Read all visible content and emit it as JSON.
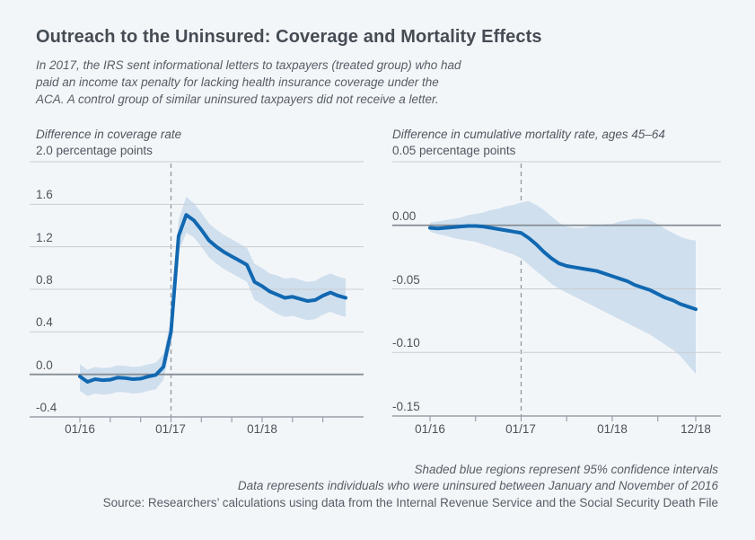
{
  "header": {
    "title": "Outreach to the Uninsured: Coverage and Mortality Effects",
    "subtitle_lines": [
      "In 2017, the IRS sent informational letters to taxpayers (treated group) who had",
      "paid an income tax penalty for lacking health insurance coverage under the",
      "ACA. A control group of similar uninsured taxpayers did not receive a letter."
    ]
  },
  "colors": {
    "background": "#f3f6f9",
    "line": "#1168b1",
    "band": "#cfdfee",
    "grid": "#c7cdd3",
    "zero_line": "#858d95",
    "axis": "#99a1a9",
    "dashed": "#90989f",
    "title_text": "#454c54",
    "body_text": "#565e66"
  },
  "footnotes": {
    "line1": "Shaded blue regions represent 95% confidence intervals",
    "line2": "Data represents individuals who were uninsured between January and November of 2016",
    "line3": "Source: Researchers’ calculations using data from the Internal Revenue Service and the Social Security Death File"
  },
  "chart_data": [
    {
      "type": "line",
      "title": "Difference in coverage rate",
      "units_label": "2.0 percentage points",
      "ylabel": "Difference in coverage rate (percentage points)",
      "ylim": [
        -0.4,
        2.0
      ],
      "ytick_step": 0.4,
      "ytick_labels": [
        "1.6",
        "1.2",
        "0.8",
        "0.4",
        "0.0",
        "-0.4"
      ],
      "xtick_labels": [
        "01/16",
        "01/17",
        "01/18"
      ],
      "treatment_start": "01/17",
      "grid": "horizontal",
      "legend_position": "none",
      "x": [
        "01/16",
        "02/16",
        "03/16",
        "04/16",
        "05/16",
        "06/16",
        "07/16",
        "08/16",
        "09/16",
        "10/16",
        "11/16",
        "12/16",
        "01/17",
        "02/17",
        "03/17",
        "04/17",
        "05/17",
        "06/17",
        "07/17",
        "08/17",
        "09/17",
        "10/17",
        "11/17",
        "12/17",
        "01/18",
        "02/18",
        "03/18",
        "04/18",
        "05/18",
        "06/18",
        "07/18",
        "08/18",
        "09/18",
        "10/18",
        "11/18",
        "12/18"
      ],
      "series": [
        {
          "name": "Treatment-control difference in coverage rate",
          "values": [
            -0.02,
            -0.07,
            -0.045,
            -0.055,
            -0.05,
            -0.03,
            -0.035,
            -0.045,
            -0.04,
            -0.02,
            -0.005,
            0.07,
            0.4,
            1.3,
            1.5,
            1.45,
            1.36,
            1.26,
            1.2,
            1.15,
            1.11,
            1.07,
            1.03,
            0.87,
            0.83,
            0.78,
            0.75,
            0.72,
            0.73,
            0.71,
            0.69,
            0.7,
            0.74,
            0.77,
            0.74,
            0.72
          ]
        }
      ],
      "ci_upper": [
        0.095,
        0.045,
        0.07,
        0.06,
        0.065,
        0.085,
        0.08,
        0.07,
        0.075,
        0.095,
        0.11,
        0.19,
        0.52,
        1.45,
        1.67,
        1.61,
        1.52,
        1.42,
        1.36,
        1.31,
        1.27,
        1.23,
        1.19,
        1.04,
        1.0,
        0.95,
        0.93,
        0.9,
        0.91,
        0.89,
        0.87,
        0.88,
        0.92,
        0.95,
        0.92,
        0.9
      ],
      "ci_lower": [
        -0.155,
        -0.205,
        -0.18,
        -0.19,
        -0.185,
        -0.165,
        -0.17,
        -0.18,
        -0.175,
        -0.155,
        -0.14,
        -0.05,
        0.28,
        1.15,
        1.33,
        1.29,
        1.2,
        1.1,
        1.04,
        0.99,
        0.95,
        0.91,
        0.87,
        0.7,
        0.66,
        0.61,
        0.57,
        0.54,
        0.55,
        0.53,
        0.51,
        0.52,
        0.56,
        0.59,
        0.56,
        0.54
      ]
    },
    {
      "type": "line",
      "title": "Difference in cumulative mortality rate, ages 45–64",
      "units_label": "0.05 percentage points",
      "ylabel": "Difference in cumulative mortality rate (percentage points)",
      "ylim": [
        -0.15,
        0.05
      ],
      "ytick_step": 0.05,
      "ytick_labels": [
        "0.00",
        "-0.05",
        "-0.10",
        "-0.15"
      ],
      "xtick_labels": [
        "01/16",
        "01/17",
        "01/18",
        "12/18"
      ],
      "treatment_start": "01/17",
      "grid": "horizontal",
      "legend_position": "none",
      "x": [
        "01/16",
        "02/16",
        "03/16",
        "04/16",
        "05/16",
        "06/16",
        "07/16",
        "08/16",
        "09/16",
        "10/16",
        "11/16",
        "12/16",
        "01/17",
        "02/17",
        "03/17",
        "04/17",
        "05/17",
        "06/17",
        "07/17",
        "08/17",
        "09/17",
        "10/17",
        "11/17",
        "12/17",
        "01/18",
        "02/18",
        "03/18",
        "04/18",
        "05/18",
        "06/18",
        "07/18",
        "08/18",
        "09/18",
        "10/18",
        "11/18",
        "12/18"
      ],
      "series": [
        {
          "name": "Treatment-control difference in cumulative mortality rate",
          "values": [
            -0.002,
            -0.0025,
            -0.002,
            -0.0015,
            -0.001,
            -0.0005,
            -0.0005,
            -0.001,
            -0.002,
            -0.003,
            -0.004,
            -0.005,
            -0.006,
            -0.01,
            -0.015,
            -0.021,
            -0.026,
            -0.03,
            -0.032,
            -0.033,
            -0.034,
            -0.035,
            -0.036,
            -0.038,
            -0.04,
            -0.042,
            -0.044,
            -0.047,
            -0.049,
            -0.051,
            -0.054,
            -0.057,
            -0.059,
            -0.062,
            -0.064,
            -0.066
          ]
        }
      ],
      "ci_upper": [
        0.002,
        0.003,
        0.004,
        0.005,
        0.006,
        0.008,
        0.009,
        0.01,
        0.012,
        0.013,
        0.015,
        0.016,
        0.018,
        0.019,
        0.016,
        0.012,
        0.007,
        0.002,
        -0.001,
        -0.002,
        -0.002,
        -0.001,
        0.0,
        0.001,
        0.001,
        0.003,
        0.004,
        0.005,
        0.005,
        0.004,
        0.001,
        -0.003,
        -0.006,
        -0.009,
        -0.011,
        -0.012
      ],
      "ci_lower": [
        -0.005,
        -0.007,
        -0.008,
        -0.01,
        -0.011,
        -0.012,
        -0.013,
        -0.015,
        -0.017,
        -0.019,
        -0.021,
        -0.023,
        -0.026,
        -0.031,
        -0.036,
        -0.041,
        -0.046,
        -0.05,
        -0.053,
        -0.056,
        -0.059,
        -0.062,
        -0.065,
        -0.068,
        -0.071,
        -0.074,
        -0.077,
        -0.08,
        -0.083,
        -0.086,
        -0.09,
        -0.094,
        -0.098,
        -0.103,
        -0.11,
        -0.117
      ]
    }
  ]
}
